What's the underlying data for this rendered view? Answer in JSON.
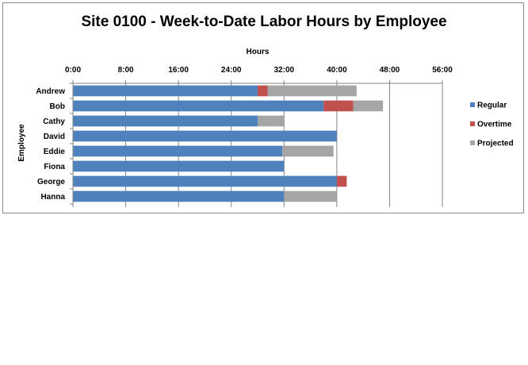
{
  "chart_data": {
    "type": "bar",
    "orientation": "horizontal",
    "stacked": true,
    "title": "Site 0100 - Week-to-Date Labor Hours by Employee",
    "xlabel": "Hours",
    "ylabel": "Employee",
    "xlim": [
      0,
      56
    ],
    "xticks": [
      {
        "value": 0,
        "label": "0:00"
      },
      {
        "value": 8,
        "label": "8:00"
      },
      {
        "value": 16,
        "label": "16:00"
      },
      {
        "value": 24,
        "label": "24:00"
      },
      {
        "value": 32,
        "label": "32:00"
      },
      {
        "value": 40,
        "label": "40:00"
      },
      {
        "value": 48,
        "label": "48:00"
      },
      {
        "value": 56,
        "label": "56:00"
      }
    ],
    "categories": [
      "Andrew",
      "Bob",
      "Cathy",
      "David",
      "Eddie",
      "Fiona",
      "George",
      "Hanna"
    ],
    "series": [
      {
        "name": "Regular",
        "color": "#4f81bd",
        "values": [
          28,
          38,
          28,
          40,
          31.75,
          32,
          40,
          32
        ]
      },
      {
        "name": "Overtime",
        "color": "#c0504d",
        "values": [
          1.5,
          4.5,
          0,
          0,
          0,
          0,
          1.5,
          0
        ]
      },
      {
        "name": "Projected",
        "color": "#a5a5a5",
        "values": [
          13.5,
          4.5,
          4,
          0,
          7.75,
          0,
          0,
          8
        ]
      }
    ],
    "grid": true,
    "legend": "right"
  }
}
